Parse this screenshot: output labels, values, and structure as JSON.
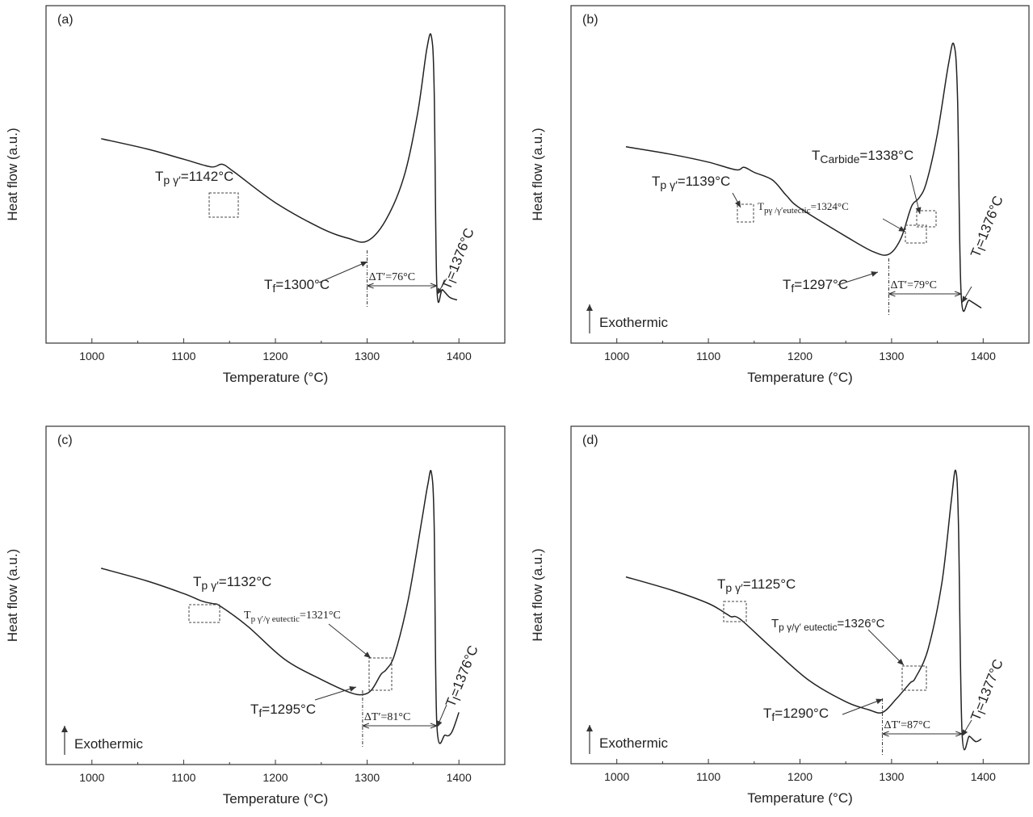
{
  "chart_data": [
    {
      "type": "line",
      "panel_label": "(a)",
      "xlabel": "Temperature (°C)",
      "ylabel": "Heat flow  (a.u.)",
      "xlim": [
        950,
        1450
      ],
      "x_ticks": [
        "1000",
        "1100",
        "1200",
        "1300",
        "1400"
      ],
      "y_ticks_shown": false,
      "series": [
        {
          "x": [
            1010,
            1060,
            1100,
            1130,
            1142,
            1155,
            1200,
            1250,
            1280,
            1300,
            1320,
            1340,
            1355,
            1365,
            1370,
            1373,
            1376,
            1382,
            1390,
            1398
          ],
          "y": [
            0.6,
            0.56,
            0.52,
            0.49,
            0.5,
            0.47,
            0.35,
            0.25,
            0.21,
            0.2,
            0.28,
            0.45,
            0.7,
            0.95,
            1.0,
            0.8,
            0.02,
            0.01,
            -0.02,
            -0.03
          ]
        }
      ],
      "annotations": [
        {
          "text": "T",
          "sub": "p γ′",
          "rest": "=1142°C",
          "x": 1142
        },
        {
          "text": "T",
          "sub": "f",
          "rest": "=1300°C",
          "x": 1300
        },
        {
          "text": "ΔT′=76°C",
          "x1": 1300,
          "x2": 1376
        },
        {
          "text": "T",
          "sub": "l",
          "rest": "=1376°C",
          "x": 1376
        }
      ]
    },
    {
      "type": "line",
      "panel_label": "(b)",
      "xlabel": "Temperature (°C)",
      "ylabel": "Heat flow  (a.u.)",
      "xlim": [
        950,
        1450
      ],
      "x_ticks": [
        "1000",
        "1100",
        "1200",
        "1300",
        "1400"
      ],
      "y_ticks_shown": false,
      "exothermic_label": "Exothermic",
      "series": [
        {
          "x": [
            1010,
            1060,
            1100,
            1130,
            1139,
            1150,
            1170,
            1185,
            1200,
            1250,
            1280,
            1297,
            1310,
            1320,
            1324,
            1330,
            1338,
            1350,
            1362,
            1368,
            1372,
            1376,
            1385,
            1398
          ],
          "y": [
            0.6,
            0.57,
            0.54,
            0.51,
            0.52,
            0.5,
            0.47,
            0.41,
            0.36,
            0.25,
            0.19,
            0.18,
            0.24,
            0.35,
            0.38,
            0.4,
            0.46,
            0.65,
            0.92,
            1.0,
            0.8,
            0.02,
            0.0,
            -0.03
          ]
        }
      ],
      "annotations": [
        {
          "text": "T",
          "sub": "p γ′",
          "rest": "=1139°C",
          "x": 1139
        },
        {
          "text": "T",
          "sub": "pγ /γ′eutectic",
          "rest": "=1324°C",
          "x": 1324
        },
        {
          "text": "T",
          "sub": "Carbide",
          "rest": "=1338°C",
          "x": 1338
        },
        {
          "text": "T",
          "sub": "f",
          "rest": "=1297°C",
          "x": 1297
        },
        {
          "text": "ΔT′=79°C",
          "x1": 1297,
          "x2": 1376
        },
        {
          "text": "T",
          "sub": "l",
          "rest": "=1376°C",
          "x": 1376
        }
      ]
    },
    {
      "type": "line",
      "panel_label": "(c)",
      "xlabel": "Temperature (°C)",
      "ylabel": "Heat flow  (a.u.)",
      "xlim": [
        950,
        1450
      ],
      "x_ticks": [
        "1000",
        "1100",
        "1200",
        "1300",
        "1400"
      ],
      "y_ticks_shown": false,
      "exothermic_label": "Exothermic",
      "series": [
        {
          "x": [
            1010,
            1060,
            1100,
            1120,
            1132,
            1140,
            1170,
            1210,
            1250,
            1280,
            1295,
            1305,
            1315,
            1321,
            1330,
            1345,
            1360,
            1366,
            1370,
            1373,
            1376,
            1385,
            1392,
            1400
          ],
          "y": [
            0.62,
            0.57,
            0.52,
            0.49,
            0.48,
            0.47,
            0.39,
            0.26,
            0.18,
            0.13,
            0.12,
            0.14,
            0.2,
            0.22,
            0.28,
            0.5,
            0.82,
            0.95,
            1.0,
            0.8,
            0.0,
            -0.04,
            -0.03,
            0.05
          ]
        }
      ],
      "annotations": [
        {
          "text": "T",
          "sub": "p γ′",
          "rest": "=1132°C",
          "x": 1132
        },
        {
          "text": "T",
          "sub": "p γ′/γ eutectic",
          "rest": "=1321°C",
          "x": 1321
        },
        {
          "text": "T",
          "sub": "f",
          "rest": "=1295°C",
          "x": 1295
        },
        {
          "text": "ΔT′=81°C",
          "x1": 1295,
          "x2": 1376
        },
        {
          "text": "T",
          "sub": "l",
          "rest": "=1376°C",
          "x": 1376
        }
      ]
    },
    {
      "type": "line",
      "panel_label": "(d)",
      "xlabel": "Temperature (°C)",
      "ylabel": "Heat flow  (a.u.)",
      "xlim": [
        950,
        1450
      ],
      "x_ticks": [
        "1000",
        "1100",
        "1200",
        "1300",
        "1400"
      ],
      "y_ticks_shown": false,
      "exothermic_label": "Exothermic",
      "series": [
        {
          "x": [
            1010,
            1060,
            1100,
            1120,
            1125,
            1135,
            1170,
            1210,
            1250,
            1275,
            1290,
            1305,
            1320,
            1326,
            1340,
            1355,
            1365,
            1370,
            1373,
            1377,
            1385,
            1392,
            1398
          ],
          "y": [
            0.6,
            0.55,
            0.5,
            0.46,
            0.45,
            0.44,
            0.33,
            0.21,
            0.13,
            0.1,
            0.09,
            0.14,
            0.2,
            0.22,
            0.33,
            0.58,
            0.88,
            1.0,
            0.8,
            0.01,
            0.0,
            -0.02,
            -0.01
          ]
        }
      ],
      "annotations": [
        {
          "text": "T",
          "sub": "p γ′",
          "rest": "=1125°C",
          "x": 1125
        },
        {
          "text": "T",
          "sub": "p γ/γ′ eutectic",
          "rest": "=1326°C",
          "x": 1326
        },
        {
          "text": "T",
          "sub": "f",
          "rest": "=1290°C",
          "x": 1290
        },
        {
          "text": "ΔT′=87°C",
          "x1": 1290,
          "x2": 1377
        },
        {
          "text": "T",
          "sub": "l",
          "rest": "=1377°C",
          "x": 1377
        }
      ]
    }
  ]
}
